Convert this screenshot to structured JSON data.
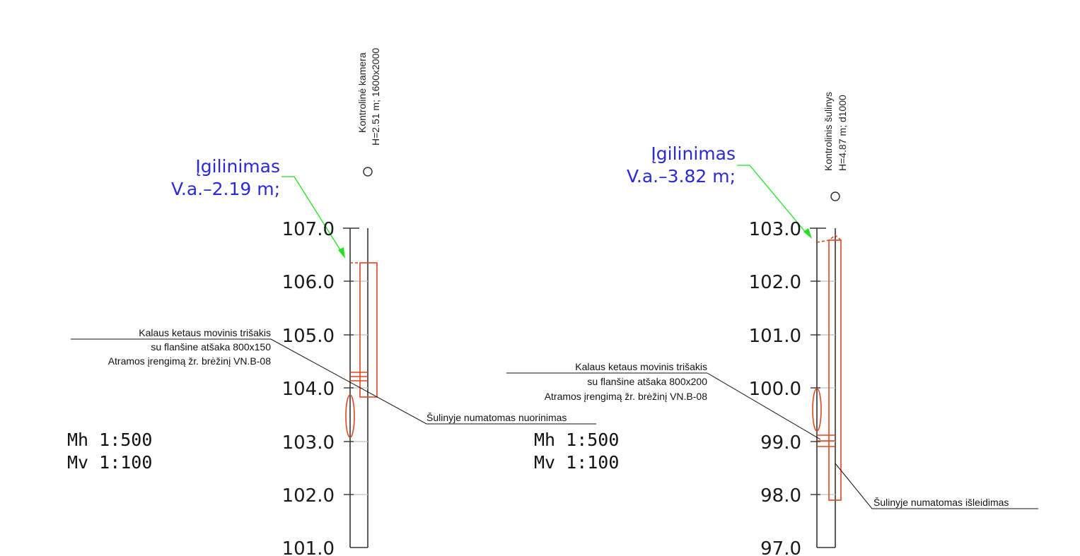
{
  "left": {
    "title_line1": "Kontrolinė kamera",
    "title_line2": "H=2.51 m; 1600x2000",
    "deepening_label": "Įgilinimas",
    "deepening_value": "V.a.–2.19 m;",
    "ticks": [
      "107.0",
      "106.0",
      "105.0",
      "104.0",
      "103.0",
      "102.0",
      "101.0"
    ],
    "note_line1": "Kalaus ketaus movinis trišakis",
    "note_line2": "su flanšine atšaka 800x150",
    "note_line3": "Atramos įrengimą žr. brėžinį VN.B-08",
    "outlet_note": "Šulinyje numatomas nuorinimas",
    "scale_h": "Mh 1:500",
    "scale_v": "Mv 1:100"
  },
  "right": {
    "title_line1": "Kontrolinis šulinys",
    "title_line2": "H=4.87 m; d1000",
    "deepening_label": "Įgilinimas",
    "deepening_value": "V.a.–3.82 m;",
    "ticks": [
      "103.0",
      "102.0",
      "101.0",
      "100.0",
      "99.0",
      "98.0",
      "97.0"
    ],
    "note_line1": "Kalaus ketaus movinis trišakis",
    "note_line2": "su flanšine atšaka 800x200",
    "note_line3": "Atramos įrengimą žr. brėžinį VN.B-08",
    "outlet_note": "Šulinyje numatomas išleidimas",
    "scale_h": "Mh 1:500",
    "scale_v": "Mv 1:100"
  },
  "colors": {
    "structure": "#e0461c",
    "leader_arrow": "#22e022",
    "annotation_blue": "#2a2ad8",
    "axis": "#333333"
  }
}
